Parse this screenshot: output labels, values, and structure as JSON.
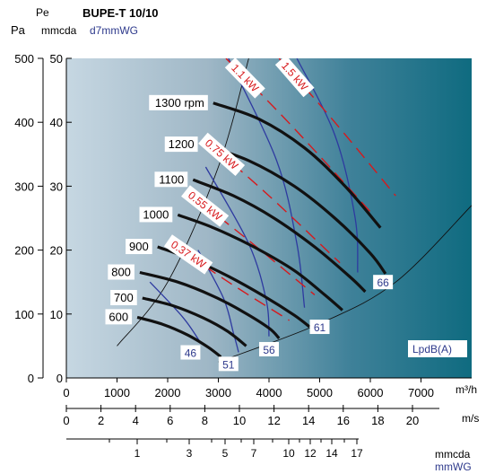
{
  "chart_data": {
    "type": "line",
    "title": "BUPE-T 10/10",
    "axes": {
      "pa_label": "Pa",
      "pe_label": "Pe",
      "mmcda_label": "mmcda",
      "mmwg_label": "d7mmWG",
      "x_unit": "m³/h",
      "ms_unit": "m/s",
      "bottom_mmcda": "mmcda",
      "bottom_mmwg": "mmWG",
      "lpd_label": "LpdB(A)"
    },
    "xlim": [
      0,
      8000
    ],
    "ylim": [
      0,
      500
    ],
    "x_ticks": [
      0,
      1000,
      2000,
      3000,
      4000,
      5000,
      6000,
      7000
    ],
    "pa_ticks": [
      0,
      100,
      200,
      300,
      400,
      500
    ],
    "mm_ticks": [
      0,
      10,
      20,
      30,
      40,
      50
    ],
    "ms_ticks": [
      0,
      2,
      4,
      6,
      8,
      10,
      12,
      14,
      16,
      18,
      20
    ],
    "mm_bottom_ticks": [
      "1",
      "3",
      "5",
      "7",
      "10",
      "12",
      "14",
      "17"
    ],
    "rpm_curves": [
      {
        "name": "600",
        "x": [
          1400,
          1900,
          2400,
          2800,
          3050
        ],
        "y": [
          95,
          84,
          67,
          48,
          33
        ]
      },
      {
        "name": "700",
        "x": [
          1500,
          2100,
          2700,
          3200,
          3550
        ],
        "y": [
          125,
          113,
          94,
          72,
          50
        ]
      },
      {
        "name": "800",
        "x": [
          1450,
          2200,
          2900,
          3500,
          4000,
          4200
        ],
        "y": [
          165,
          150,
          128,
          103,
          78,
          62
        ]
      },
      {
        "name": "900",
        "x": [
          1800,
          2500,
          3200,
          3900,
          4500,
          4800
        ],
        "y": [
          205,
          185,
          159,
          128,
          98,
          80
        ]
      },
      {
        "name": "1000",
        "x": [
          2200,
          2900,
          3700,
          4500,
          5100,
          5450
        ],
        "y": [
          255,
          235,
          205,
          168,
          130,
          106
        ]
      },
      {
        "name": "1100",
        "x": [
          2500,
          3300,
          4100,
          4900,
          5600,
          5900
        ],
        "y": [
          310,
          285,
          250,
          205,
          158,
          135
        ]
      },
      {
        "name": "1200",
        "x": [
          2700,
          3600,
          4500,
          5300,
          6000,
          6300
        ],
        "y": [
          365,
          340,
          300,
          250,
          195,
          163
        ]
      },
      {
        "name": "1300 rpm",
        "x": [
          2900,
          3800,
          4700,
          5500,
          6200
        ],
        "y": [
          430,
          405,
          360,
          300,
          235
        ]
      }
    ],
    "power_lines": [
      {
        "name": "0.37 kW",
        "x": [
          2100,
          3200,
          4400
        ],
        "y": [
          210,
          150,
          90
        ]
      },
      {
        "name": "0.55 kW",
        "x": [
          2400,
          3600,
          4900
        ],
        "y": [
          290,
          215,
          130
        ]
      },
      {
        "name": "0.75 kW",
        "x": [
          2700,
          4000,
          5400
        ],
        "y": [
          375,
          285,
          180
        ]
      },
      {
        "name": "1.1 kW",
        "x": [
          3150,
          4500,
          6000
        ],
        "y": [
          500,
          390,
          260
        ]
      },
      {
        "name": "1.5 kW",
        "x": [
          4200,
          5300,
          6500
        ],
        "y": [
          500,
          400,
          285
        ]
      }
    ],
    "noise_curves": [
      {
        "name": "46",
        "x": [
          1650,
          2300,
          2650
        ],
        "y": [
          150,
          95,
          55
        ]
      },
      {
        "name": "51",
        "x": [
          2600,
          3100,
          3300,
          3400
        ],
        "y": [
          200,
          125,
          70,
          40
        ]
      },
      {
        "name": "56",
        "x": [
          2750,
          3600,
          3950,
          4000
        ],
        "y": [
          330,
          210,
          120,
          65
        ]
      },
      {
        "name": "61",
        "x": [
          3200,
          4150,
          4550,
          4700
        ],
        "y": [
          500,
          340,
          210,
          110
        ]
      },
      {
        "name": "66",
        "x": [
          4550,
          5300,
          5700,
          5750
        ],
        "y": [
          500,
          380,
          250,
          165
        ]
      }
    ],
    "noise_label_pos": [
      {
        "name": "46",
        "x": 2450,
        "y": 40
      },
      {
        "name": "51",
        "x": 3200,
        "y": 22
      },
      {
        "name": "56",
        "x": 4000,
        "y": 45
      },
      {
        "name": "61",
        "x": 5000,
        "y": 80
      },
      {
        "name": "66",
        "x": 6250,
        "y": 150
      }
    ],
    "system_curve_left": {
      "x": [
        1000,
        2000,
        3000,
        3600
      ],
      "y": [
        50,
        150,
        330,
        500
      ]
    },
    "system_curve_right": {
      "x": [
        3000,
        5000,
        6500,
        8000
      ],
      "y": [
        25,
        85,
        150,
        270
      ]
    },
    "grid": false,
    "legend": "none"
  }
}
